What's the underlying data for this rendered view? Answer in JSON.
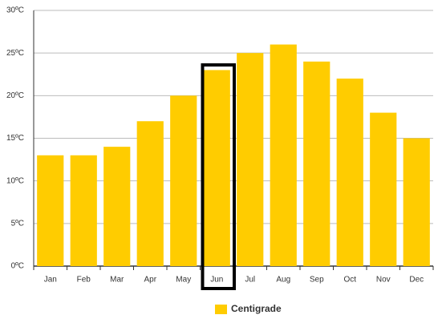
{
  "chart_data": {
    "type": "bar",
    "categories": [
      "Jan",
      "Feb",
      "Mar",
      "Apr",
      "May",
      "Jun",
      "Jul",
      "Aug",
      "Sep",
      "Oct",
      "Nov",
      "Dec"
    ],
    "series": [
      {
        "name": "Centigrade",
        "color": "#ffcc00",
        "values": [
          13,
          13,
          14,
          17,
          20,
          23,
          25,
          26,
          24,
          22,
          18,
          15
        ]
      }
    ],
    "ylim": [
      0,
      30
    ],
    "yticks": [
      {
        "value": 0,
        "label": "0ºC"
      },
      {
        "value": 5,
        "label": "5ºC"
      },
      {
        "value": 10,
        "label": "10ºC"
      },
      {
        "value": 15,
        "label": "15ºC"
      },
      {
        "value": 20,
        "label": "20ºC"
      },
      {
        "value": 25,
        "label": "25ºC"
      },
      {
        "value": 30,
        "label": "30ºC"
      }
    ],
    "grid": true,
    "highlight": 5,
    "legend": "bottom"
  }
}
